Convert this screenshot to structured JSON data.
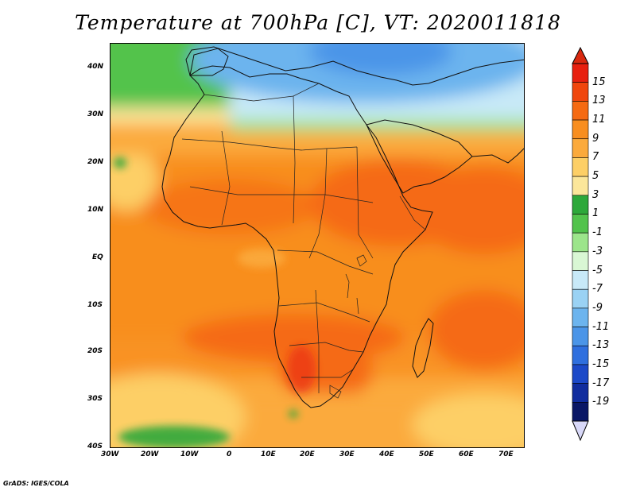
{
  "title": "Temperature at 700hPa [C], VT: 2020011818",
  "credit": "GrADS: IGES/COLA",
  "map": {
    "lat_labels": [
      "40N",
      "30N",
      "20N",
      "10N",
      "EQ",
      "10S",
      "20S",
      "30S",
      "40S"
    ],
    "lon_labels": [
      "30W",
      "20W",
      "10W",
      "0",
      "10E",
      "20E",
      "30E",
      "40E",
      "50E",
      "60E",
      "70E"
    ]
  },
  "colorbar": {
    "labels": [
      "15",
      "13",
      "11",
      "9",
      "7",
      "5",
      "3",
      "1",
      "-1",
      "-3",
      "-5",
      "-7",
      "-9",
      "-11",
      "-13",
      "-15",
      "-17",
      "-19"
    ],
    "colors": [
      "#e8200f",
      "#f0460d",
      "#f56a12",
      "#f88e1f",
      "#fbaa3c",
      "#fdcf66",
      "#fbe69a",
      "#2da83a",
      "#52c34c",
      "#9ce58b",
      "#d9f7d4",
      "#c8e9f8",
      "#9ad2f4",
      "#6cb4ee",
      "#4b95e8",
      "#2f6fde",
      "#1c49c8",
      "#112d9e",
      "#0a1766"
    ],
    "top_arrow_color": "#d9290f",
    "bottom_arrow_color": "#d8d8f8"
  }
}
